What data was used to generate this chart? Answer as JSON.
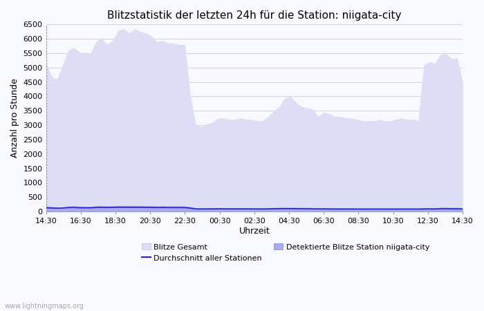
{
  "title": "Blitzstatistik der letzten 24h für die Station: niigata-city",
  "xlabel": "Uhrzeit",
  "ylabel": "Anzahl pro Stunde",
  "xticks_display": [
    "14:30",
    "16:30",
    "18:30",
    "20:30",
    "22:30",
    "00:30",
    "02:30",
    "04:30",
    "06:30",
    "08:30",
    "10:30",
    "12:30",
    "14:30"
  ],
  "ylim": [
    0,
    6500
  ],
  "yticks": [
    0,
    500,
    1000,
    1500,
    2000,
    2500,
    3000,
    3500,
    4000,
    4500,
    5000,
    5500,
    6000,
    6500
  ],
  "blitze_gesamt": [
    5200,
    4700,
    4600,
    5100,
    5600,
    5700,
    5550,
    5500,
    5500,
    5900,
    6050,
    5800,
    5950,
    6300,
    6350,
    6200,
    6350,
    6250,
    6200,
    6100,
    5900,
    5950,
    5850,
    5850,
    5800,
    5800,
    4000,
    3000,
    2950,
    3050,
    3100,
    3250,
    3250,
    3200,
    3200,
    3250,
    3200,
    3200,
    3150,
    3150,
    3300,
    3500,
    3650,
    3950,
    4000,
    3800,
    3650,
    3600,
    3550,
    3300,
    3450,
    3400,
    3300,
    3300,
    3250,
    3250,
    3200,
    3150,
    3150,
    3150,
    3200,
    3150,
    3150,
    3200,
    3250,
    3200,
    3200,
    3150,
    5100,
    5200,
    5150,
    5450,
    5500,
    5300,
    5350,
    4500
  ],
  "detektierte_blitze": [
    200,
    170,
    150,
    160,
    190,
    200,
    185,
    180,
    180,
    200,
    210,
    195,
    200,
    215,
    215,
    210,
    215,
    210,
    205,
    200,
    195,
    200,
    195,
    195,
    195,
    195,
    170,
    130,
    125,
    130,
    130,
    135,
    135,
    130,
    130,
    135,
    130,
    130,
    125,
    125,
    130,
    140,
    145,
    150,
    150,
    145,
    140,
    140,
    135,
    130,
    130,
    128,
    125,
    125,
    125,
    125,
    120,
    120,
    120,
    120,
    120,
    120,
    120,
    120,
    120,
    120,
    120,
    120,
    130,
    135,
    130,
    145,
    150,
    140,
    140,
    130
  ],
  "durchschnitt": [
    130,
    120,
    115,
    120,
    135,
    140,
    130,
    128,
    128,
    140,
    145,
    138,
    142,
    148,
    148,
    145,
    148,
    145,
    143,
    140,
    138,
    140,
    136,
    136,
    136,
    136,
    115,
    90,
    88,
    90,
    90,
    92,
    92,
    90,
    90,
    92,
    90,
    90,
    88,
    88,
    90,
    95,
    98,
    100,
    100,
    98,
    95,
    95,
    92,
    90,
    90,
    88,
    86,
    86,
    86,
    86,
    84,
    84,
    84,
    84,
    84,
    84,
    84,
    84,
    84,
    84,
    84,
    84,
    88,
    90,
    88,
    95,
    98,
    93,
    93,
    88
  ],
  "color_gesamt_fill": "#ddddf5",
  "color_gesamt_edge": "#ddddf5",
  "color_detektiert_fill": "#aaaaee",
  "color_detektiert_edge": "#aaaaee",
  "color_durchschnitt": "#2222cc",
  "background_color": "#f8f8ff",
  "grid_color": "#cccccc",
  "title_fontsize": 11,
  "label_fontsize": 9,
  "tick_fontsize": 8,
  "legend_fontsize": 8,
  "watermark": "www.lightningmaps.org"
}
